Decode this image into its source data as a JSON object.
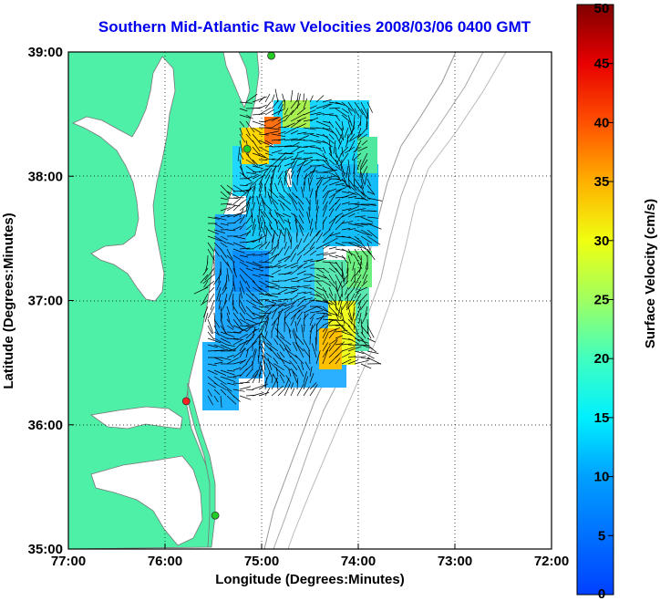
{
  "title": "Southern Mid-Atlantic Raw Velocities 2008/03/06 0400 GMT",
  "map": {
    "xlabel": "Longitude (Degrees:Minutes)",
    "ylabel": "Latitude (Degrees:Minutes)",
    "x_ticks": [
      "77:00",
      "76:00",
      "75:00",
      "74:00",
      "73:00",
      "72:00"
    ],
    "y_ticks": [
      "39:00",
      "38:00",
      "37:00",
      "36:00",
      "35:00"
    ],
    "lon_range": [
      -77,
      -72
    ],
    "lat_range": [
      35,
      39
    ],
    "grid": "dotted",
    "land_color": "#4ef0a8",
    "water_color": "#ffffff",
    "vector_color": "#000000",
    "stations": [
      {
        "lon": -74.9,
        "lat": 38.97,
        "color": "#22cc22"
      },
      {
        "lon": -75.15,
        "lat": 38.22,
        "color": "#22cc22"
      },
      {
        "lon": -75.78,
        "lat": 36.19,
        "color": "#ff2222"
      },
      {
        "lon": -75.48,
        "lat": 35.27,
        "color": "#22cc22"
      }
    ]
  },
  "colorbar": {
    "label": "Surface Velocity (cm/s)",
    "ticks": [
      "0",
      "5",
      "10",
      "15",
      "20",
      "25",
      "30",
      "35",
      "40",
      "45",
      "50"
    ],
    "min": 0,
    "max": 50,
    "colormap": "jet"
  }
}
